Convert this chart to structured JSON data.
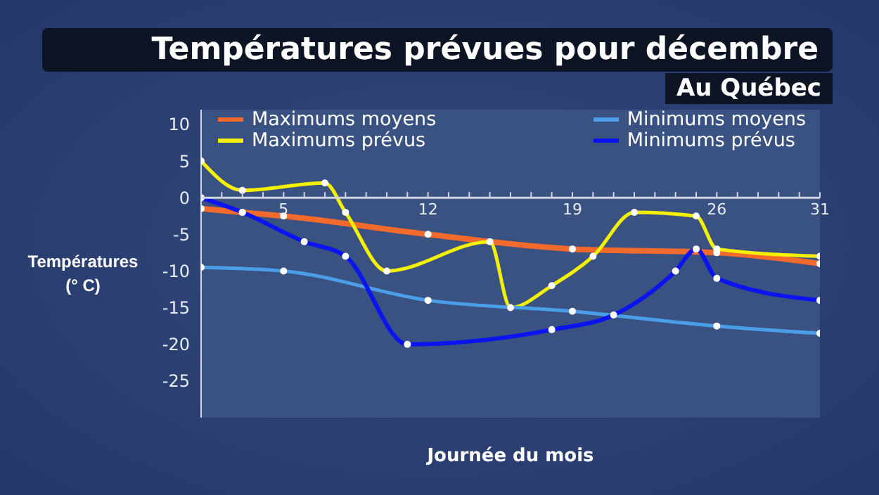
{
  "chart_data": {
    "type": "line",
    "title": "Températures prévues pour décembre",
    "subtitle": "Au Québec",
    "xlabel": "Journée du mois",
    "ylabel": "Températures (° C)",
    "xlim": [
      1,
      31
    ],
    "xticks": [
      {
        "value": 1,
        "label": null
      },
      {
        "value": 2,
        "label": null
      },
      {
        "value": 3,
        "label": null
      },
      {
        "value": 4,
        "label": null
      },
      5,
      {
        "value": 6,
        "label": null
      },
      {
        "value": 7,
        "label": null
      },
      {
        "value": 8,
        "label": null
      },
      {
        "value": 9,
        "label": null
      },
      {
        "value": 10,
        "label": null
      },
      {
        "value": 11,
        "label": null
      },
      12,
      {
        "value": 13,
        "label": null
      },
      {
        "value": 14,
        "label": null
      },
      {
        "value": 15,
        "label": null
      },
      {
        "value": 16,
        "label": null
      },
      {
        "value": 17,
        "label": null
      },
      {
        "value": 18,
        "label": null
      },
      19,
      {
        "value": 20,
        "label": null
      },
      {
        "value": 21,
        "label": null
      },
      {
        "value": 22,
        "label": null
      },
      {
        "value": 23,
        "label": null
      },
      {
        "value": 24,
        "label": null
      },
      {
        "value": 25,
        "label": null
      },
      26,
      {
        "value": 27,
        "label": null
      },
      {
        "value": 28,
        "label": null
      },
      {
        "value": 29,
        "label": null
      },
      {
        "value": 30,
        "label": null
      },
      31
    ],
    "ylim": [
      -30,
      12
    ],
    "yticks": [
      -25,
      -20,
      -15,
      -10,
      -5,
      0,
      5,
      10
    ],
    "grid": false,
    "legend": "top",
    "marker": "circle",
    "line_style": "solid",
    "series": [
      {
        "name": "Maximums moyens",
        "color": "#f26a2c",
        "x": [
          1,
          3,
          5,
          12,
          19,
          26,
          31
        ],
        "values": [
          -1.5,
          -2,
          -2.5,
          -5,
          -7,
          -7.5,
          -9
        ]
      },
      {
        "name": "Maximums prévus",
        "color": "#f5f000",
        "x": [
          1,
          3,
          7,
          8,
          10,
          15,
          16,
          18,
          20,
          22,
          25,
          26,
          31
        ],
        "values": [
          5,
          1,
          2,
          -2,
          -10,
          -6,
          -15,
          -12,
          -8,
          -2,
          -2.5,
          -7,
          -8
        ]
      },
      {
        "name": "Minimums moyens",
        "color": "#4a9ee8",
        "x": [
          1,
          5,
          12,
          19,
          26,
          31
        ],
        "values": [
          -9.5,
          -10,
          -14,
          -15.5,
          -17.5,
          -18.5
        ]
      },
      {
        "name": "Minimums prévus",
        "color": "#0a14f0",
        "x": [
          1,
          3,
          6,
          8,
          11,
          18,
          21,
          24,
          25,
          26,
          31
        ],
        "values": [
          0,
          -2,
          -6,
          -8,
          -20,
          -18,
          -16,
          -10,
          -7,
          -11,
          -14
        ]
      }
    ]
  }
}
